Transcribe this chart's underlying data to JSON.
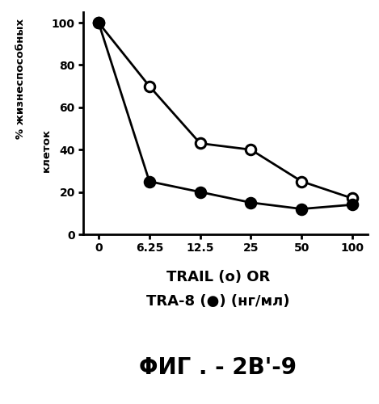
{
  "x_indices": [
    0,
    1,
    2,
    3,
    4,
    5
  ],
  "x_tick_labels": [
    "0",
    "6.25",
    "12.5",
    "25",
    "50",
    "100"
  ],
  "trail_y": [
    100,
    70,
    43,
    40,
    25,
    17
  ],
  "tra8_y": [
    100,
    25,
    20,
    15,
    12,
    14
  ],
  "y_ticks": [
    0,
    20,
    40,
    60,
    80,
    100
  ],
  "ylabel_top": "% жизнеспособных",
  "ylabel_bottom": "клеток",
  "xlabel_line1": "TRAIL (o) OR",
  "xlabel_line2": "TRA-8 (●) (нг/мл)",
  "figure_title": "ΦИГ . - 2B'-9",
  "line_color": "black",
  "bg_color": "white",
  "markersize": 9,
  "linewidth": 2.0
}
